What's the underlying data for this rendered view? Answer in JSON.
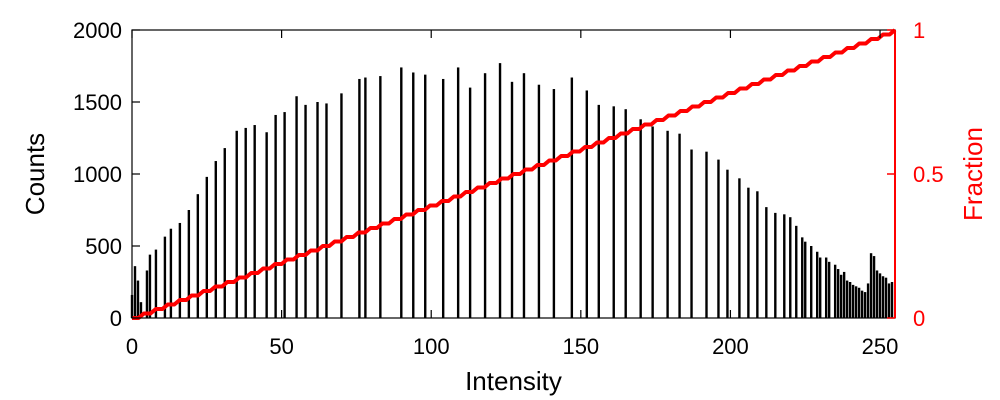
{
  "chart_data": {
    "type": "bar",
    "xlabel": "Intensity",
    "ylabel": "Counts",
    "y2label": "Fraction",
    "xlim": [
      0,
      255
    ],
    "ylim": [
      0,
      2000
    ],
    "y2lim": [
      0,
      1
    ],
    "x_ticks": [
      "0",
      "50",
      "100",
      "150",
      "200",
      "250"
    ],
    "y_ticks": [
      "0",
      "500",
      "1000",
      "1500",
      "2000"
    ],
    "y2_ticks": [
      "0",
      "0.5",
      "1"
    ],
    "grid": false,
    "legend": "none",
    "colors": {
      "bars": "#000000",
      "cdf": "#ff0000",
      "axis_left": "#000000",
      "axis_right": "#ff0000"
    },
    "series": [
      {
        "kind": "bars",
        "axis": "left",
        "x": [
          0,
          1,
          2,
          3,
          5,
          6,
          8,
          11,
          13,
          16,
          19,
          22,
          25,
          28,
          31,
          35,
          38,
          41,
          45,
          48,
          51,
          55,
          58,
          62,
          65,
          70,
          76,
          78,
          83,
          90,
          94,
          98,
          104,
          109,
          113,
          118,
          123,
          127,
          131,
          136,
          141,
          147,
          152,
          156,
          161,
          165,
          170,
          174,
          179,
          183,
          187,
          192,
          196,
          199,
          203,
          206,
          209,
          212,
          215,
          218,
          220,
          222,
          224,
          225,
          227,
          229,
          230,
          232,
          233,
          235,
          236,
          237,
          238,
          239,
          240,
          241,
          242,
          243,
          244,
          245,
          246,
          247,
          248,
          249,
          250,
          251,
          252,
          253,
          254
        ],
        "values": [
          160,
          360,
          260,
          110,
          330,
          440,
          475,
          565,
          620,
          660,
          750,
          860,
          980,
          1090,
          1180,
          1300,
          1320,
          1340,
          1290,
          1410,
          1430,
          1540,
          1480,
          1500,
          1490,
          1560,
          1660,
          1670,
          1680,
          1740,
          1705,
          1690,
          1660,
          1740,
          1600,
          1700,
          1770,
          1640,
          1700,
          1620,
          1590,
          1670,
          1580,
          1480,
          1470,
          1450,
          1380,
          1330,
          1300,
          1280,
          1170,
          1155,
          1100,
          1030,
          970,
          905,
          880,
          770,
          730,
          720,
          700,
          640,
          560,
          530,
          500,
          460,
          420,
          420,
          390,
          370,
          340,
          300,
          320,
          260,
          250,
          230,
          220,
          210,
          190,
          180,
          240,
          450,
          430,
          330,
          310,
          290,
          280,
          240,
          250
        ]
      },
      {
        "kind": "cdf",
        "axis": "right",
        "x": [
          0,
          255
        ],
        "values": [
          0,
          1
        ],
        "style": "staircase"
      }
    ]
  }
}
